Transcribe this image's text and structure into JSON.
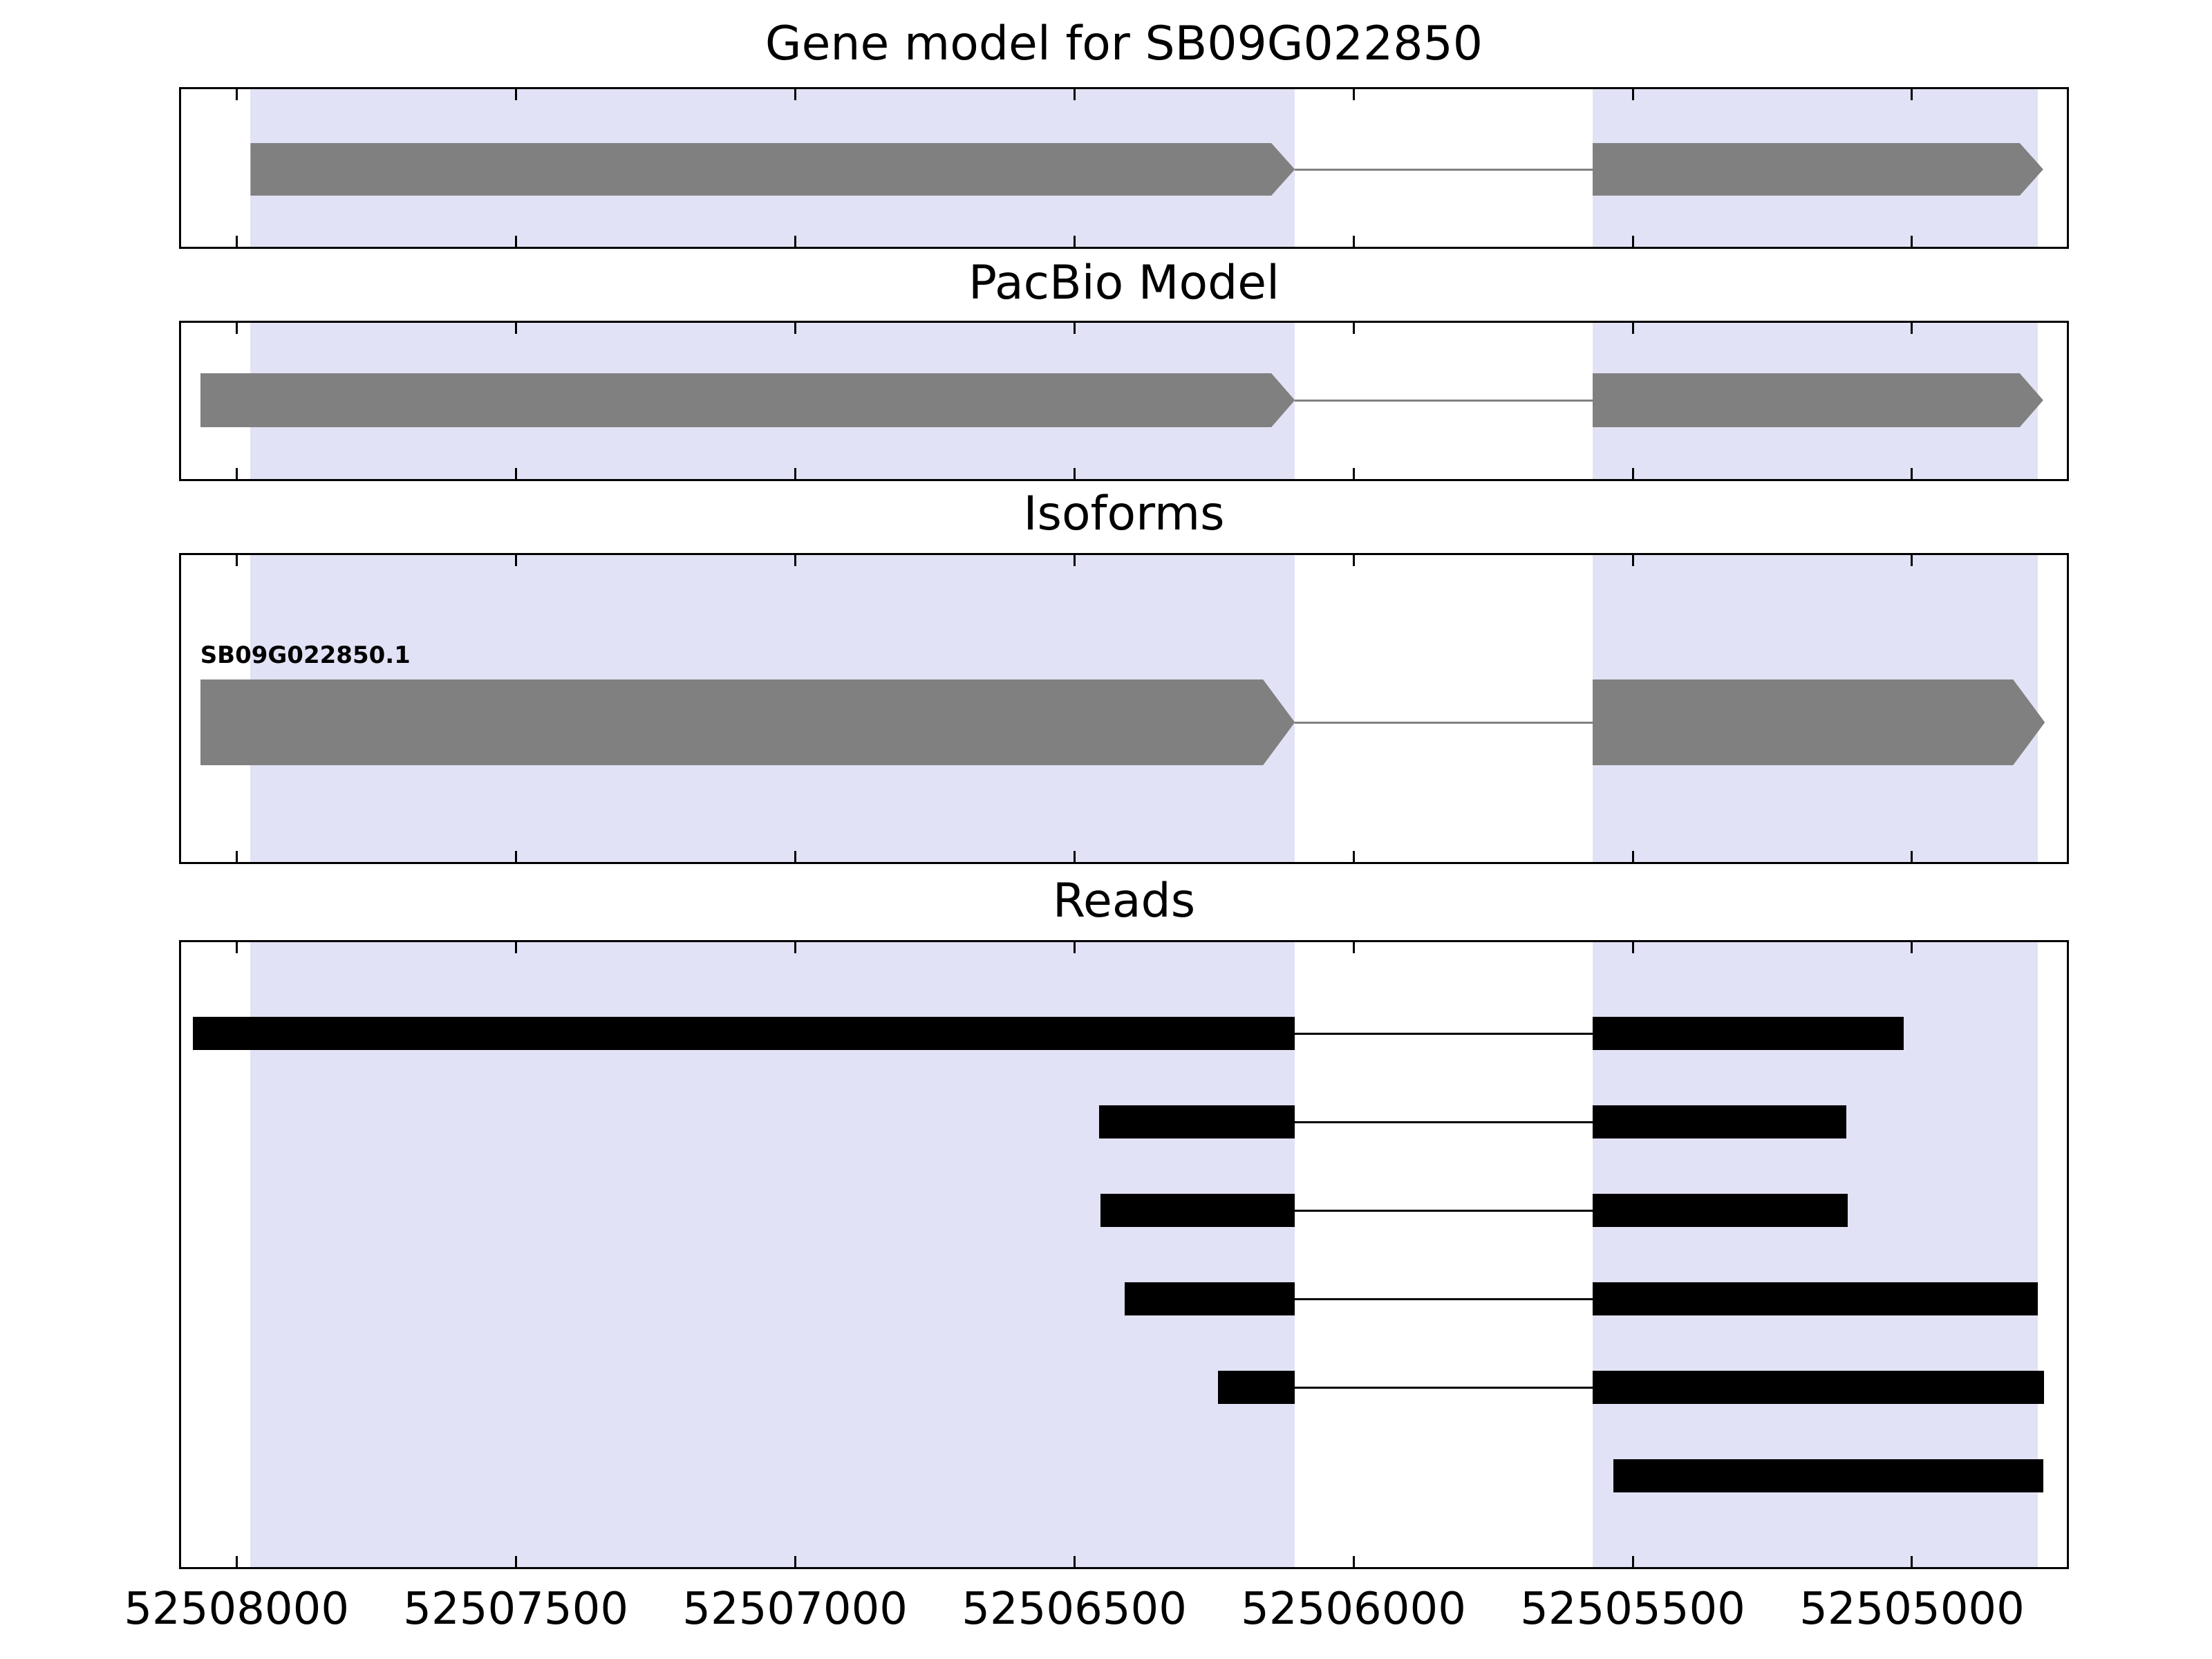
{
  "chart_data": {
    "type": "genome-tracks",
    "title": "Gene model for SB09G022850",
    "gene_id": "SB09G022850",
    "x_axis": {
      "range_left": 52508103,
      "range_right": 52504719,
      "direction": "decreasing",
      "ticks": [
        52508000,
        52507500,
        52507000,
        52506500,
        52506000,
        52505500,
        52505000
      ]
    },
    "highlight_regions": [
      {
        "from": 52507975,
        "to": 52506105
      },
      {
        "from": 52505572,
        "to": 52504775
      }
    ],
    "colors": {
      "background": "#ffffff",
      "highlight": "#e2e2f6",
      "gene_fill": "#808080",
      "read_fill": "#000000",
      "border": "#000000",
      "text": "#000000"
    },
    "tracks": {
      "gene_model": {
        "features": [
          {
            "exons": [
              [
                52507975,
                52506105
              ],
              [
                52505572,
                52504765
              ]
            ],
            "direction": "right"
          }
        ]
      },
      "pacbio": {
        "title": "PacBio Model",
        "features": [
          {
            "exons": [
              [
                52508065,
                52506105
              ],
              [
                52505572,
                52504765
              ]
            ],
            "direction": "right"
          }
        ]
      },
      "isoforms": {
        "title": "Isoforms",
        "features": [
          {
            "label": "SB09G022850.1",
            "exons": [
              [
                52508065,
                52506105
              ],
              [
                52505572,
                52504762
              ]
            ],
            "direction": "right"
          }
        ]
      },
      "reads": {
        "title": "Reads",
        "reads": [
          {
            "segments": [
              [
                52508078,
                52506105
              ],
              [
                52505572,
                52505015
              ]
            ]
          },
          {
            "segments": [
              [
                52506455,
                52506105
              ],
              [
                52505572,
                52505118
              ]
            ]
          },
          {
            "segments": [
              [
                52506453,
                52506105
              ],
              [
                52505572,
                52505115
              ]
            ]
          },
          {
            "segments": [
              [
                52506410,
                52506105
              ],
              [
                52505572,
                52504775
              ]
            ]
          },
          {
            "segments": [
              [
                52506243,
                52506105
              ],
              [
                52505572,
                52504764
              ]
            ]
          },
          {
            "segments": [
              [
                52505535,
                52504765
              ]
            ]
          }
        ]
      }
    }
  }
}
